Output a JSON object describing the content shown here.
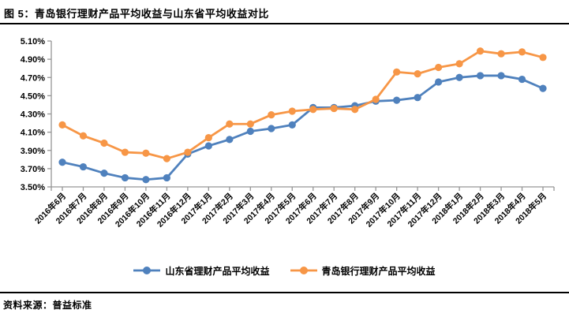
{
  "header": {
    "title": "图 5：青岛银行理财产品平均收益与山东省平均收益对比"
  },
  "footer": {
    "source": "资料来源：普益标准"
  },
  "chart_data": {
    "type": "line",
    "title": "青岛银行理财产品平均收益与山东省平均收益对比",
    "categories": [
      "2016年6月",
      "2016年7月",
      "2016年8月",
      "2016年9月",
      "2016年10月",
      "2016年11月",
      "2016年12月",
      "2017年1月",
      "2017年2月",
      "2017年3月",
      "2017年4月",
      "2017年5月",
      "2017年6月",
      "2017年7月",
      "2017年8月",
      "2017年9月",
      "2017年10月",
      "2017年11月",
      "2017年12月",
      "2018年1月",
      "2018年2月",
      "2018年3月",
      "2018年4月",
      "2018年5月"
    ],
    "series": [
      {
        "name": "山东省理财产品平均收益",
        "color": "#4F81BD",
        "values": [
          3.77,
          3.72,
          3.65,
          3.6,
          3.58,
          3.6,
          3.86,
          3.95,
          4.02,
          4.11,
          4.14,
          4.18,
          4.37,
          4.37,
          4.39,
          4.44,
          4.45,
          4.48,
          4.65,
          4.7,
          4.72,
          4.72,
          4.68,
          4.58
        ]
      },
      {
        "name": "青岛银行理财产品平均收益",
        "color": "#F79646",
        "values": [
          4.18,
          4.06,
          3.98,
          3.88,
          3.87,
          3.81,
          3.88,
          4.04,
          4.19,
          4.19,
          4.29,
          4.33,
          4.35,
          4.36,
          4.35,
          4.46,
          4.76,
          4.74,
          4.81,
          4.85,
          4.99,
          4.96,
          4.98,
          4.92
        ]
      }
    ],
    "ylim": [
      3.5,
      5.1
    ],
    "ytick_step": 0.2,
    "ytick_labels": [
      "3.50%",
      "3.70%",
      "3.90%",
      "4.10%",
      "4.30%",
      "4.50%",
      "4.70%",
      "4.90%",
      "5.10%"
    ],
    "grid": false,
    "legend_position": "bottom",
    "axis_color": "#969696",
    "label_color": "#000000"
  }
}
